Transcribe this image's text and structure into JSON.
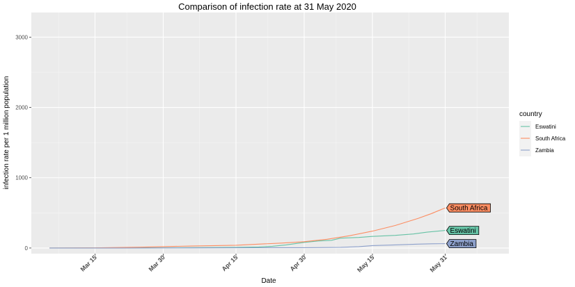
{
  "chart_data": {
    "type": "line",
    "title": "Comparison of infection rate at 31 May 2020",
    "xlabel": "Date",
    "ylabel": "infection rate per 1 million population",
    "x_ticks": [
      "Mar 15",
      "Mar 30",
      "Apr 15",
      "Apr 30",
      "May 15",
      "May 31"
    ],
    "y_ticks": [
      "0",
      "1000",
      "2000",
      "3000"
    ],
    "ylim": [
      -80,
      3350
    ],
    "xlim": [
      "2020-03-01",
      "2020-06-14"
    ],
    "grid": true,
    "legend": {
      "title": "country",
      "position": "right"
    },
    "series": [
      {
        "name": "Eswatini",
        "color": "#66c2a5",
        "end_label": "Eswatini",
        "points": [
          [
            "2020-03-05",
            0
          ],
          [
            "2020-03-15",
            1
          ],
          [
            "2020-03-25",
            3
          ],
          [
            "2020-04-05",
            6
          ],
          [
            "2020-04-15",
            10
          ],
          [
            "2020-04-20",
            15
          ],
          [
            "2020-04-23",
            25
          ],
          [
            "2020-04-26",
            45
          ],
          [
            "2020-04-30",
            80
          ],
          [
            "2020-05-03",
            100
          ],
          [
            "2020-05-06",
            110
          ],
          [
            "2020-05-08",
            140
          ],
          [
            "2020-05-12",
            150
          ],
          [
            "2020-05-15",
            165
          ],
          [
            "2020-05-20",
            180
          ],
          [
            "2020-05-24",
            200
          ],
          [
            "2020-05-27",
            225
          ],
          [
            "2020-05-31",
            250
          ]
        ]
      },
      {
        "name": "South Africa",
        "color": "#fc8d62",
        "end_label": "South Africa",
        "points": [
          [
            "2020-03-05",
            0
          ],
          [
            "2020-03-15",
            2
          ],
          [
            "2020-03-25",
            12
          ],
          [
            "2020-03-30",
            20
          ],
          [
            "2020-04-05",
            28
          ],
          [
            "2020-04-15",
            40
          ],
          [
            "2020-04-20",
            55
          ],
          [
            "2020-04-25",
            70
          ],
          [
            "2020-04-30",
            90
          ],
          [
            "2020-05-05",
            125
          ],
          [
            "2020-05-10",
            175
          ],
          [
            "2020-05-15",
            240
          ],
          [
            "2020-05-20",
            320
          ],
          [
            "2020-05-25",
            420
          ],
          [
            "2020-05-28",
            490
          ],
          [
            "2020-05-31",
            570
          ]
        ]
      },
      {
        "name": "Zambia",
        "color": "#8da0cb",
        "end_label": "Zambia",
        "points": [
          [
            "2020-03-05",
            0
          ],
          [
            "2020-03-20",
            0
          ],
          [
            "2020-04-05",
            2
          ],
          [
            "2020-04-20",
            4
          ],
          [
            "2020-04-30",
            5
          ],
          [
            "2020-05-08",
            10
          ],
          [
            "2020-05-12",
            20
          ],
          [
            "2020-05-15",
            35
          ],
          [
            "2020-05-20",
            45
          ],
          [
            "2020-05-25",
            55
          ],
          [
            "2020-05-28",
            60
          ],
          [
            "2020-05-31",
            62
          ]
        ]
      }
    ]
  }
}
